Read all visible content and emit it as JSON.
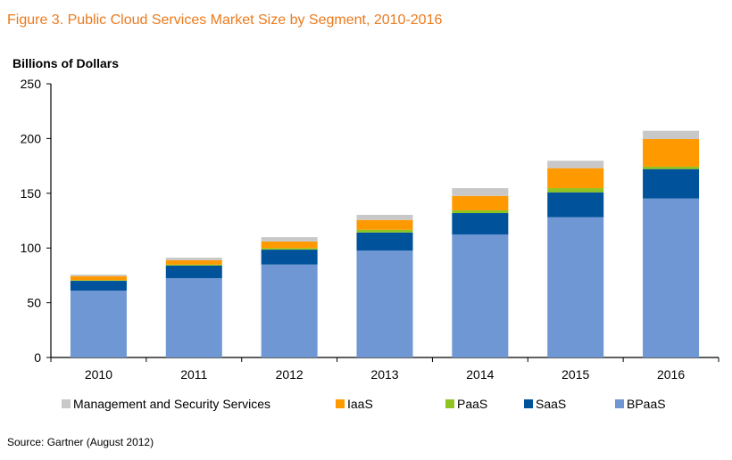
{
  "chart_data": {
    "type": "bar",
    "stacked": true,
    "title": "Figure 3. Public Cloud Services Market Size by Segment, 2010-2016",
    "ylabel": "Billions of Dollars",
    "xlabel": "",
    "ylim": [
      0,
      250
    ],
    "yticks": [
      0,
      50,
      100,
      150,
      200,
      250
    ],
    "grid": false,
    "legend_position": "bottom",
    "categories": [
      "2010",
      "2011",
      "2012",
      "2013",
      "2014",
      "2015",
      "2016"
    ],
    "series": [
      {
        "name": "BPaaS",
        "color": "#6f97d4",
        "values": [
          61.1,
          72.5,
          84.9,
          97.7,
          112.4,
          128.1,
          145.2
        ]
      },
      {
        "name": "SaaS",
        "color": "#00529b",
        "values": [
          8.9,
          11.4,
          13.6,
          16.5,
          19.5,
          22.8,
          26.9
        ]
      },
      {
        "name": "PaaS",
        "color": "#8fc31f",
        "values": [
          0.6,
          1.0,
          1.4,
          2.5,
          2.5,
          3.8,
          2.2
        ]
      },
      {
        "name": "IaaS",
        "color": "#ff9900",
        "values": [
          3.7,
          3.9,
          6.0,
          8.9,
          13.2,
          18.2,
          25.2
        ]
      },
      {
        "name": "Management and Security Services",
        "color": "#c8c8c8",
        "values": [
          1.4,
          2.4,
          4.0,
          4.7,
          7.1,
          6.8,
          7.6
        ]
      }
    ],
    "legend_order": [
      "Management and Security Services",
      "IaaS",
      "PaaS",
      "SaaS",
      "BPaaS"
    ]
  },
  "source": "Source: Gartner (August 2012)"
}
